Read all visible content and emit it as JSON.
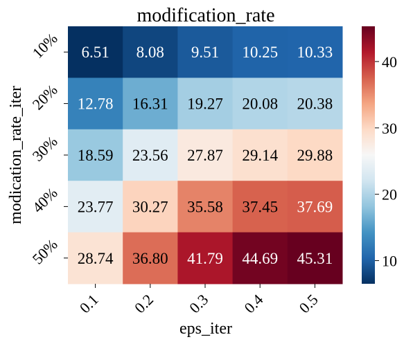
{
  "chart_data": {
    "type": "heatmap",
    "title": "modification_rate",
    "xlabel": "eps_iter",
    "ylabel": "modication_rate_iter",
    "x_categories": [
      "0.1",
      "0.2",
      "0.3",
      "0.4",
      "0.5"
    ],
    "y_categories": [
      "10%",
      "20%",
      "30%",
      "40%",
      "50%"
    ],
    "values": [
      [
        6.51,
        8.08,
        9.51,
        10.25,
        10.33
      ],
      [
        12.78,
        16.31,
        19.27,
        20.08,
        20.38
      ],
      [
        18.59,
        23.56,
        27.87,
        29.14,
        29.88
      ],
      [
        23.77,
        30.27,
        35.58,
        37.45,
        37.69
      ],
      [
        28.74,
        36.8,
        41.79,
        44.69,
        45.31
      ]
    ],
    "value_labels": [
      [
        "6.51",
        "8.08",
        "9.51",
        "10.25",
        "10.33"
      ],
      [
        "12.78",
        "16.31",
        "19.27",
        "20.08",
        "20.38"
      ],
      [
        "18.59",
        "23.56",
        "27.87",
        "29.14",
        "29.88"
      ],
      [
        "23.77",
        "30.27",
        "35.58",
        "37.45",
        "37.69"
      ],
      [
        "28.74",
        "36.80",
        "41.79",
        "44.69",
        "45.31"
      ]
    ],
    "colormap": "RdBu_r",
    "colormap_stops": [
      "#053061",
      "#2166ac",
      "#4393c3",
      "#92c5de",
      "#d1e5f0",
      "#f7f7f7",
      "#fddbc7",
      "#f4a582",
      "#d6604d",
      "#b2182b",
      "#67001f"
    ],
    "vmin": 6.51,
    "vmax": 45.31,
    "colorbar": {
      "ticks": [
        10,
        20,
        30,
        40
      ],
      "tick_labels": [
        "10",
        "20",
        "30",
        "40"
      ],
      "position": "right"
    }
  }
}
